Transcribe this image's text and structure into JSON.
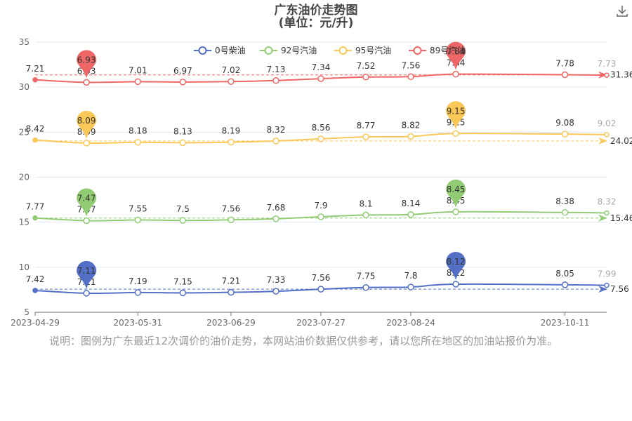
{
  "title_line1": "广东油价走势图",
  "title_line2": "(单位：元/升)",
  "note": "说明：图例为广东最近12次调价的油价走势，本网站油价数据仅供参考，请以您所在地区的加油站报价为准。",
  "download_icon": "download-icon",
  "chart_data": {
    "type": "line",
    "title": "广东油价走势图",
    "subtitle": "(单位：元/升)",
    "x": [
      "2023-04-29",
      "2023-05-15",
      "2023-05-31",
      "2023-06-14",
      "2023-06-29",
      "2023-07-13",
      "2023-07-27",
      "2023-08-10",
      "2023-08-24",
      "2023-09-07",
      "2023-10-11",
      "2023-10-24"
    ],
    "xticks": [
      "2023-04-29",
      "2023-05-31",
      "2023-06-29",
      "2023-07-27",
      "2023-08-24",
      "2023-10-11"
    ],
    "ylim": [
      5,
      35
    ],
    "yticks": [
      5,
      10,
      15,
      20,
      25,
      30,
      35
    ],
    "legend_position": "top-center",
    "series": [
      {
        "name": "0号柴油",
        "color": "#5470c6",
        "offset": 0,
        "values": [
          7.42,
          7.11,
          7.19,
          7.15,
          7.21,
          7.33,
          7.56,
          7.75,
          7.8,
          8.12,
          8.05,
          7.99
        ],
        "max": 8.12,
        "min": 7.11,
        "average": 7.56
      },
      {
        "name": "92号汽油",
        "color": "#91cc75",
        "offset": 7.7,
        "values": [
          7.77,
          7.47,
          7.55,
          7.5,
          7.56,
          7.68,
          7.9,
          8.1,
          8.14,
          8.45,
          8.38,
          8.32
        ],
        "max": 8.45,
        "min": 7.47,
        "average": 15.46
      },
      {
        "name": "95号汽油",
        "color": "#fac858",
        "offset": 15.7,
        "values": [
          8.42,
          8.09,
          8.18,
          8.13,
          8.19,
          8.32,
          8.56,
          8.77,
          8.82,
          9.15,
          9.08,
          9.02
        ],
        "max": 9.15,
        "min": 8.09,
        "average": 24.02
      },
      {
        "name": "89号汽油",
        "color": "#ee6666",
        "offset": 23.6,
        "values": [
          7.21,
          6.93,
          7.01,
          6.97,
          7.02,
          7.13,
          7.34,
          7.52,
          7.56,
          7.84,
          7.78,
          7.73
        ],
        "max": 7.84,
        "min": 6.93,
        "average": 31.36
      }
    ]
  }
}
